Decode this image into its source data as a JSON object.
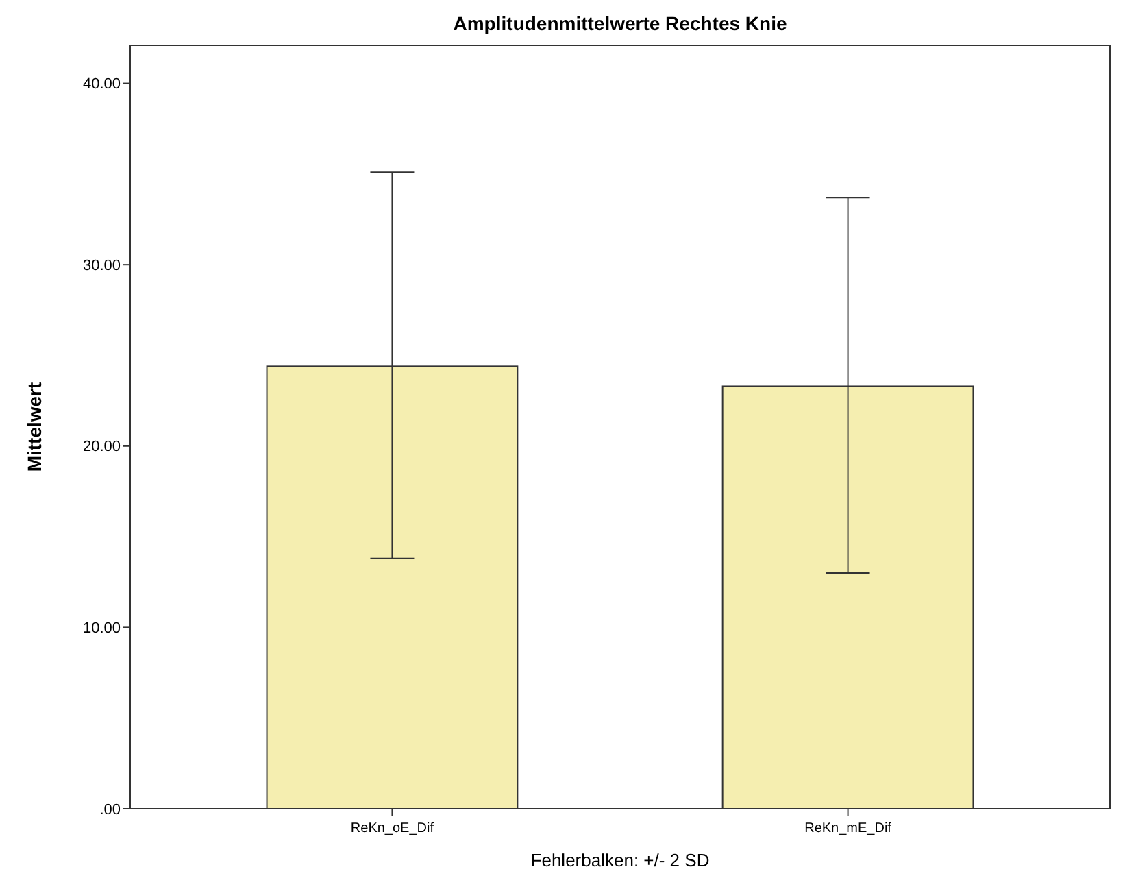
{
  "chart_data": {
    "type": "bar",
    "title": "Amplitudenmittelwerte Rechtes Knie",
    "ylabel": "Mittelwert",
    "categories": [
      "ReKn_oE_Dif",
      "ReKn_mE_Dif"
    ],
    "values": [
      24.4,
      23.3
    ],
    "color": "#f5eeb0",
    "errors": [
      [
        13.8,
        35.1
      ],
      [
        13.0,
        33.7
      ]
    ],
    "ylim": [
      0,
      42.1
    ],
    "yticks": [
      {
        "value": 0,
        "label": ".00"
      },
      {
        "value": 10,
        "label": "10.00"
      },
      {
        "value": 20,
        "label": "20.00"
      },
      {
        "value": 30,
        "label": "30.00"
      },
      {
        "value": 40,
        "label": "40.00"
      }
    ],
    "grid": false,
    "annotations": [
      "Fehlerbalken: +/- 2 SD"
    ]
  }
}
